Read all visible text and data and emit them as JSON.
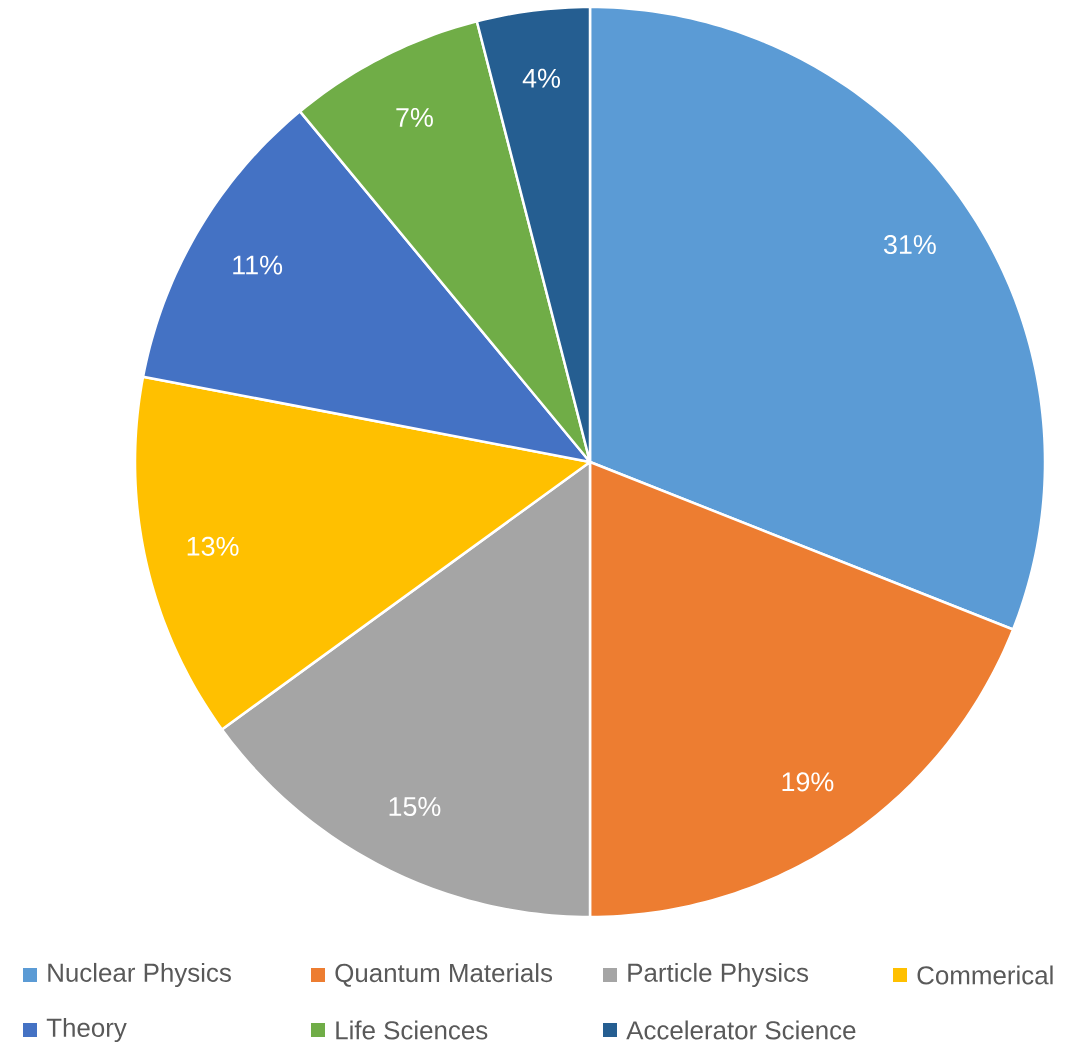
{
  "chart_data": {
    "type": "pie",
    "categories": [
      "Nuclear Physics",
      "Quantum Materials",
      "Particle Physics",
      "Commerical",
      "Theory",
      "Life Sciences",
      "Accelerator Science"
    ],
    "values": [
      31,
      19,
      15,
      13,
      11,
      7,
      4
    ],
    "value_labels": [
      "31%",
      "19%",
      "15%",
      "13%",
      "11%",
      "7%",
      "4%"
    ],
    "colors": [
      "#5b9bd5",
      "#ed7d31",
      "#a5a5a5",
      "#ffc000",
      "#4472c4",
      "#70ad47",
      "#255e91"
    ],
    "legend": "bottom"
  }
}
